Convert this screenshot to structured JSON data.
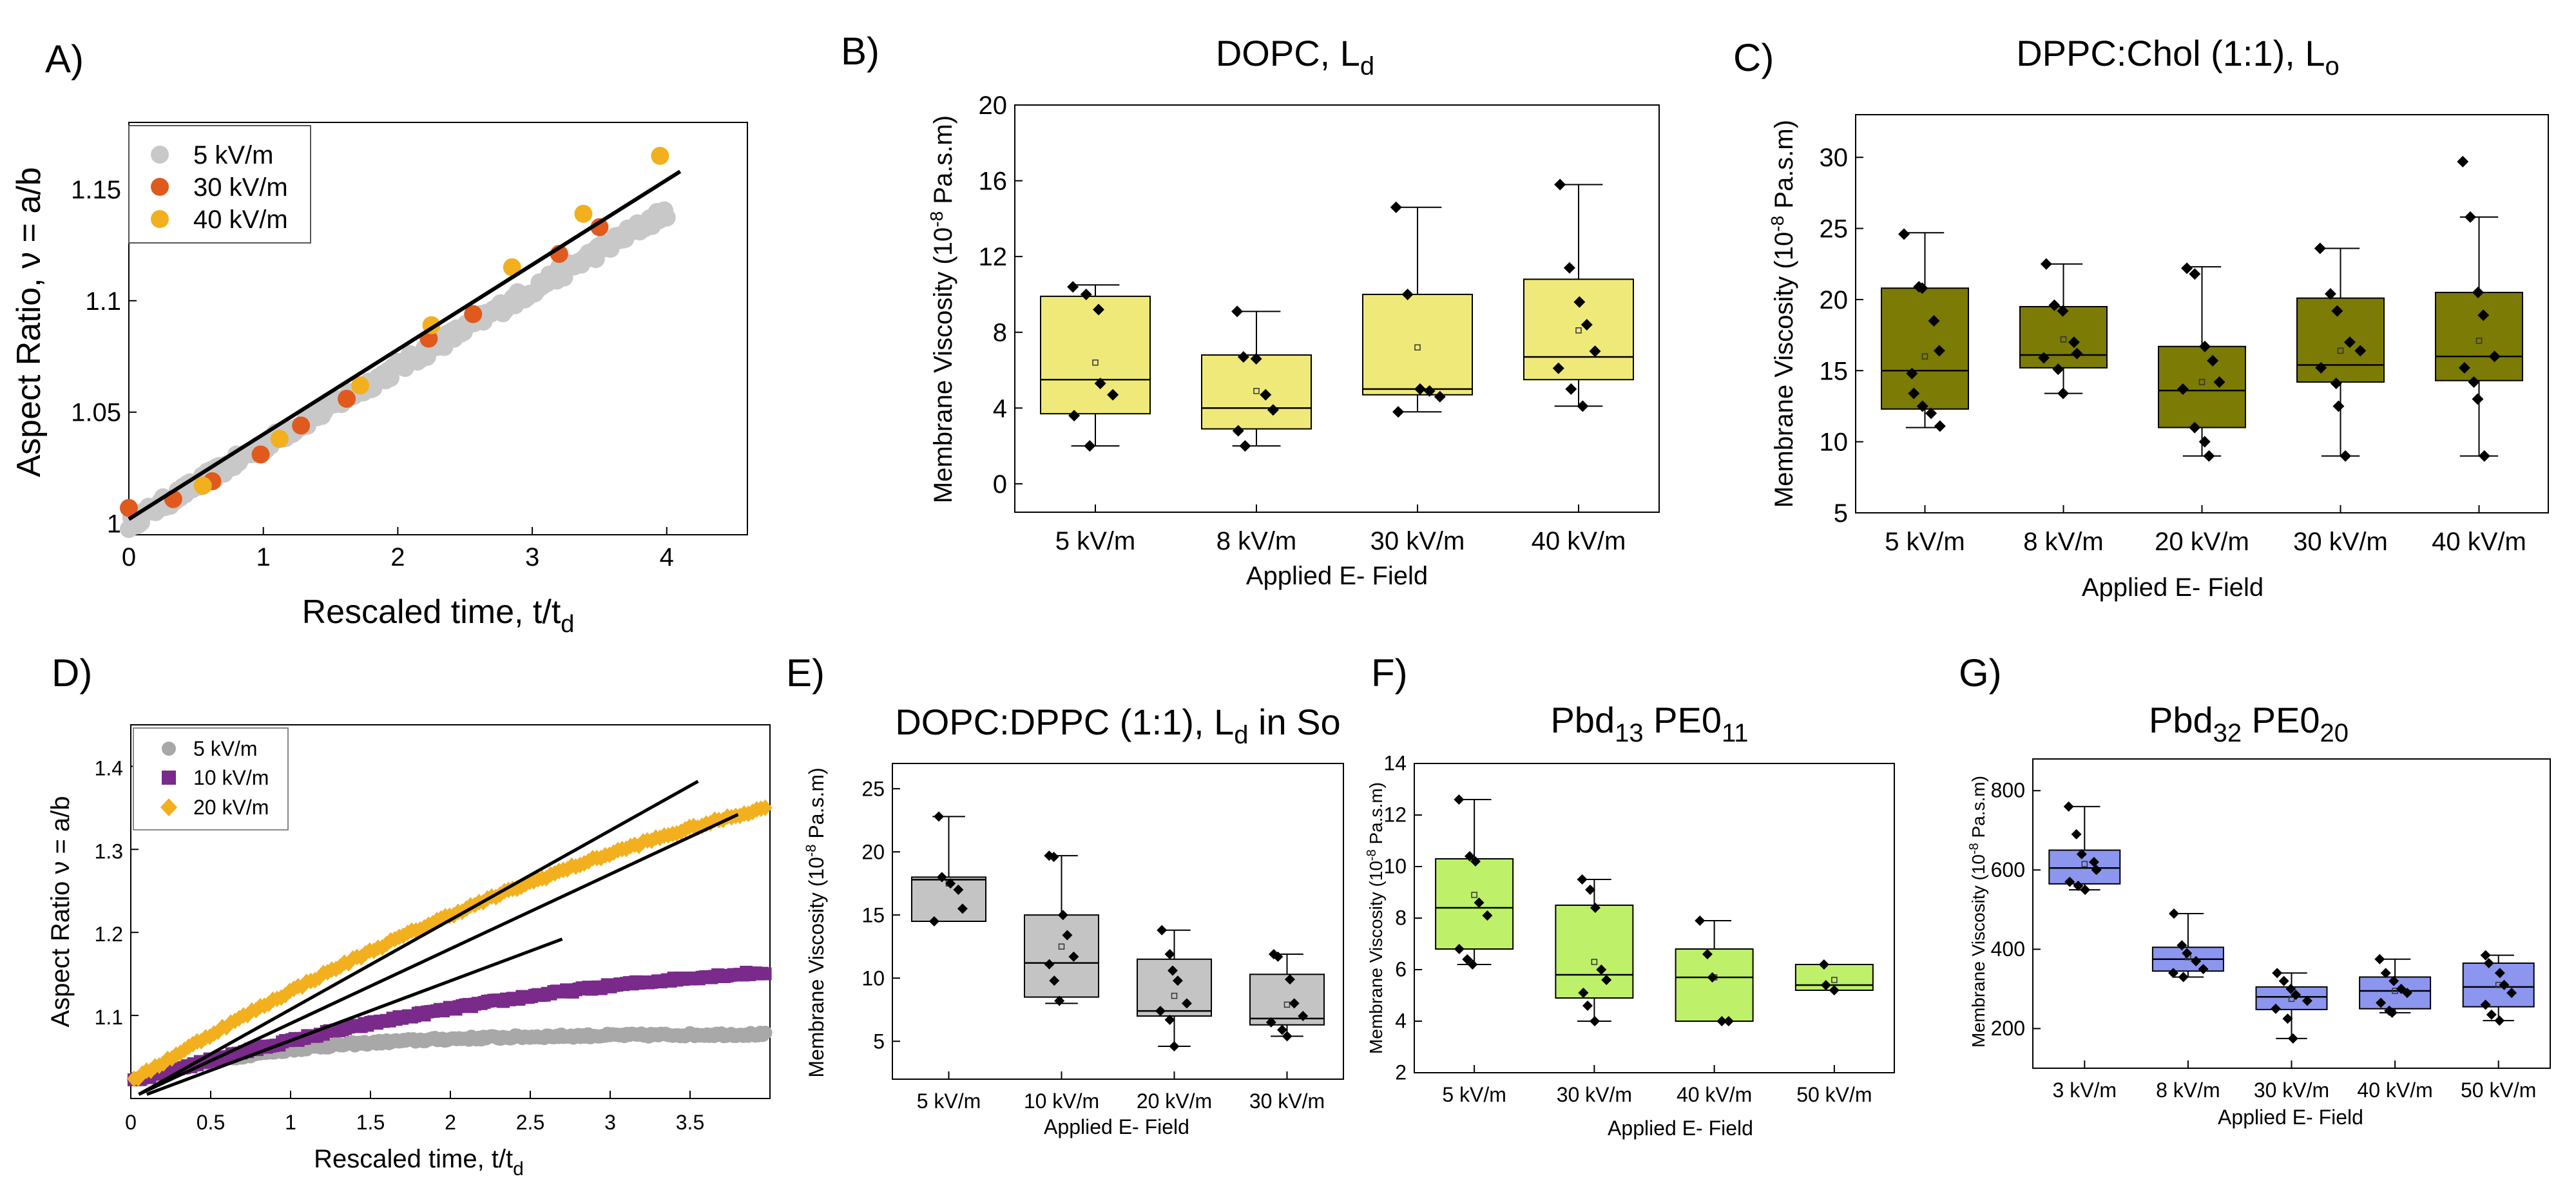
{
  "chart_data": [
    {
      "id": "A",
      "panel_label": "A)",
      "type": "scatter",
      "title": "",
      "xlabel": "Rescaled time, t/t",
      "xlabel_sub": "d",
      "ylabel": "Aspect Ratio, ν = a/b",
      "xlim": [
        0,
        4.6
      ],
      "ylim": [
        0.995,
        1.18
      ],
      "xticks": [
        0,
        1,
        2,
        3,
        4
      ],
      "yticks": [
        1,
        1.05,
        1.1,
        1.15
      ],
      "ytick_labels": [
        "1",
        "1.05",
        "1.1",
        "1.15"
      ],
      "legend": [
        "5 kV/m",
        "30 kV/m",
        "40 kV/m"
      ],
      "colors": [
        "#c8c8c8",
        "#e05a1e",
        "#f2b01e"
      ],
      "series": [
        {
          "name": "5 kV/m",
          "color": "#c8c8c8",
          "t0": 0,
          "t1": 4.0,
          "y0": 1.0,
          "y1": 1.14
        },
        {
          "name": "30 kV/m",
          "color": "#e05a1e",
          "x": [
            0,
            0.33,
            0.62,
            0.98,
            1.28,
            1.62,
            2.23,
            2.56,
            3.2,
            3.5
          ],
          "y": [
            1.007,
            1.011,
            1.019,
            1.031,
            1.044,
            1.056,
            1.083,
            1.094,
            1.121,
            1.133
          ]
        },
        {
          "name": "40 kV/m",
          "color": "#f2b01e",
          "x": [
            0.55,
            1.12,
            1.72,
            2.25,
            2.85,
            3.38,
            3.95
          ],
          "y": [
            1.017,
            1.038,
            1.062,
            1.089,
            1.115,
            1.139,
            1.165
          ]
        }
      ],
      "fit": {
        "x": [
          0,
          4.1
        ],
        "y": [
          1.002,
          1.158
        ]
      }
    },
    {
      "id": "B",
      "panel_label": "B)",
      "type": "box",
      "title": "DOPC, L",
      "title_sub": "d",
      "xlabel": "Applied E- Field",
      "ylabel": "Membrane Viscosity (10",
      "ylabel_sup": "-8",
      "ylabel_end": " Pa.s.m)",
      "ylim": [
        -1.5,
        20
      ],
      "yticks": [
        0,
        4,
        8,
        12,
        16,
        20
      ],
      "categories": [
        "5 kV/m",
        "8 kV/m",
        "30 kV/m",
        "40 kV/m"
      ],
      "color": "#efe97a",
      "boxes": [
        {
          "min": 2.0,
          "q1": 3.7,
          "median": 5.5,
          "q3": 9.9,
          "max": 10.5,
          "mean": 6.4,
          "points": [
            10.4,
            10.0,
            9.2,
            5.3,
            4.7,
            3.6,
            2.0
          ]
        },
        {
          "min": 2.0,
          "q1": 2.9,
          "median": 4.0,
          "q3": 6.8,
          "max": 9.1,
          "mean": 4.9,
          "points": [
            9.1,
            6.7,
            6.6,
            4.7,
            3.9,
            2.8,
            2.0
          ]
        },
        {
          "min": 3.8,
          "q1": 4.7,
          "median": 5.0,
          "q3": 10.0,
          "max": 14.6,
          "mean": 7.2,
          "points": [
            14.6,
            10.0,
            5.0,
            4.9,
            4.6,
            3.8
          ]
        },
        {
          "min": 4.1,
          "q1": 5.5,
          "median": 6.7,
          "q3": 10.8,
          "max": 15.8,
          "mean": 8.1,
          "points": [
            15.8,
            11.4,
            9.6,
            8.4,
            7.0,
            6.1,
            5.0,
            4.1
          ]
        }
      ]
    },
    {
      "id": "C",
      "panel_label": "C)",
      "type": "box",
      "title": "DPPC:Chol (1:1), L",
      "title_sub": "o",
      "xlabel": "Applied E- Field",
      "ylabel": "Membrane Viscosity (10",
      "ylabel_sup": "-8",
      "ylabel_end": " Pa.s.m)",
      "ylim": [
        5,
        33
      ],
      "yticks": [
        5,
        10,
        15,
        20,
        25,
        30
      ],
      "categories": [
        "5 kV/m",
        "8 kV/m",
        "20 kV/m",
        "30 kV/m",
        "40 kV/m"
      ],
      "color": "#7b7b06",
      "boxes": [
        {
          "min": 11.0,
          "q1": 12.3,
          "median": 15.0,
          "q3": 20.8,
          "max": 24.7,
          "mean": 16.0,
          "points": [
            24.6,
            20.9,
            20.8,
            18.5,
            16.4,
            14.8,
            13.4,
            12.5,
            12.0,
            11.1
          ]
        },
        {
          "min": 13.4,
          "q1": 15.2,
          "median": 16.1,
          "q3": 19.5,
          "max": 22.5,
          "mean": 17.2,
          "points": [
            22.5,
            19.6,
            19.2,
            17.0,
            16.2,
            15.9,
            15.1,
            13.4
          ]
        },
        {
          "min": 9.0,
          "q1": 11.0,
          "median": 13.6,
          "q3": 16.7,
          "max": 22.3,
          "mean": 14.2,
          "points": [
            22.2,
            21.8,
            16.7,
            15.7,
            14.2,
            13.7,
            11.0,
            10.0,
            9.0
          ]
        },
        {
          "min": 9.0,
          "q1": 14.2,
          "median": 15.4,
          "q3": 20.1,
          "max": 23.6,
          "mean": 16.4,
          "points": [
            23.6,
            20.4,
            19.2,
            17.0,
            16.4,
            15.2,
            14.1,
            12.5,
            9.0
          ]
        },
        {
          "min": 9.0,
          "q1": 14.3,
          "median": 16.0,
          "q3": 20.5,
          "max": 25.8,
          "mean": 17.1,
          "points": [
            29.7,
            25.8,
            20.5,
            18.9,
            16.0,
            15.2,
            14.2,
            13.0,
            9.0
          ]
        }
      ]
    },
    {
      "id": "D",
      "panel_label": "D)",
      "type": "scatter",
      "title": "",
      "xlabel": "Rescaled time, t/t",
      "xlabel_sub": "d",
      "ylabel": "Aspect Ratio ν = a/b",
      "xlim": [
        0,
        4.0
      ],
      "ylim": [
        1.0,
        1.45
      ],
      "xticks": [
        0,
        0.5,
        1,
        1.5,
        2,
        2.5,
        3,
        3.5
      ],
      "xtick_labels": [
        "0",
        "0.5",
        "1",
        "1.5",
        "2",
        "2.5",
        "3",
        "3.5"
      ],
      "yticks": [
        1.1,
        1.2,
        1.3,
        1.4
      ],
      "ytick_labels": [
        "1.1",
        "1.2",
        "1.3",
        "1.4"
      ],
      "legend": [
        "5 kV/m",
        "10 kV/m",
        "20 kV/m"
      ],
      "colors": [
        "#a8a8a8",
        "#7a2a8a",
        "#f2b01e"
      ],
      "fits": [
        {
          "x": [
            0.05,
            3.55
          ],
          "y": [
            1.005,
            1.382
          ]
        },
        {
          "x": [
            0.05,
            3.8
          ],
          "y": [
            1.005,
            1.342
          ]
        },
        {
          "x": [
            0.1,
            2.7
          ],
          "y": [
            1.005,
            1.192
          ]
        }
      ]
    },
    {
      "id": "E",
      "panel_label": "E)",
      "type": "box",
      "title": "DOPC:DPPC (1:1), L",
      "title_sub": "d",
      "title_end": " in So",
      "xlabel": "Applied E- Field",
      "ylabel": "Membrane Viscosity (10",
      "ylabel_sup": "-8",
      "ylabel_end": " Pa.s.m)",
      "ylim": [
        2,
        27
      ],
      "yticks": [
        5,
        10,
        15,
        20,
        25
      ],
      "categories": [
        "5 kV/m",
        "10 kV/m",
        "20 kV/m",
        "30 kV/m"
      ],
      "color": "#c4c4c4",
      "boxes": [
        {
          "min": 14.5,
          "q1": 14.5,
          "median": 17.8,
          "q3": 18.0,
          "max": 22.8,
          "mean": 17.5,
          "points": [
            22.8,
            18.0,
            17.5,
            17.0,
            15.5,
            14.5
          ]
        },
        {
          "min": 8.0,
          "q1": 8.5,
          "median": 11.2,
          "q3": 15.0,
          "max": 19.7,
          "mean": 12.5,
          "points": [
            19.7,
            19.6,
            15.0,
            13.4,
            11.7,
            11.1,
            9.8,
            8.2
          ]
        },
        {
          "min": 4.6,
          "q1": 7.0,
          "median": 7.4,
          "q3": 11.5,
          "max": 13.8,
          "mean": 8.6,
          "points": [
            13.8,
            11.9,
            10.6,
            9.8,
            8.0,
            7.4,
            6.7,
            4.6
          ]
        },
        {
          "min": 5.4,
          "q1": 6.3,
          "median": 6.8,
          "q3": 10.3,
          "max": 11.9,
          "mean": 7.9,
          "points": [
            11.9,
            11.7,
            9.9,
            8.0,
            7.0,
            6.5,
            5.9,
            5.4
          ]
        }
      ]
    },
    {
      "id": "F",
      "panel_label": "F)",
      "type": "box",
      "title": "Pbd",
      "title_sub": "13",
      "title_mid": " PE0",
      "title_sub2": "11",
      "xlabel": "Applied E- Field",
      "ylabel": "Membrane Viscosity (10",
      "ylabel_sup": "-8",
      "ylabel_end": " Pa.s.m)",
      "ylim": [
        2,
        14
      ],
      "yticks": [
        2,
        4,
        6,
        8,
        10,
        12,
        14
      ],
      "categories": [
        "5 kV/m",
        "30 kV/m",
        "40 kV/m",
        "50 kV/m"
      ],
      "color": "#bef06a",
      "boxes": [
        {
          "min": 6.2,
          "q1": 6.8,
          "median": 8.4,
          "q3": 10.3,
          "max": 12.6,
          "mean": 8.9,
          "points": [
            12.6,
            10.4,
            10.2,
            8.6,
            8.1,
            6.8,
            6.4,
            6.2
          ]
        },
        {
          "min": 4.0,
          "q1": 4.9,
          "median": 5.8,
          "q3": 8.5,
          "max": 9.5,
          "mean": 6.3,
          "points": [
            9.5,
            9.1,
            8.4,
            6.0,
            5.6,
            5.1,
            4.6,
            4.0
          ]
        },
        {
          "min": 4.0,
          "q1": 4.0,
          "median": 5.7,
          "q3": 6.8,
          "max": 7.9,
          "mean": 5.7,
          "points": [
            7.9,
            6.6,
            5.7,
            4.0,
            4.0
          ]
        },
        {
          "min": 5.2,
          "q1": 5.2,
          "median": 5.4,
          "q3": 6.2,
          "max": 6.2,
          "mean": 5.6,
          "points": [
            6.2,
            5.4,
            5.2
          ]
        }
      ]
    },
    {
      "id": "G",
      "panel_label": "G)",
      "type": "box",
      "title": "Pbd",
      "title_sub": "32",
      "title_mid": " PE0",
      "title_sub2": "20",
      "xlabel": "Applied E- Field",
      "ylabel": "Membrane Viscosity (10",
      "ylabel_sup": "-8",
      "ylabel_end": " Pa.s.m)",
      "ylim": [
        100,
        880
      ],
      "yticks": [
        200,
        400,
        600,
        800
      ],
      "categories": [
        "3 kV/m",
        "8 kV/m",
        "30 kV/m",
        "40 kV/m",
        "50 kV/m"
      ],
      "color": "#8c96ee",
      "boxes": [
        {
          "min": 550,
          "q1": 565,
          "median": 605,
          "q3": 650,
          "max": 760,
          "mean": 615,
          "points": [
            760,
            690,
            640,
            620,
            600,
            570,
            560,
            550
          ]
        },
        {
          "min": 330,
          "q1": 345,
          "median": 375,
          "q3": 405,
          "max": 490,
          "mean": 380,
          "points": [
            490,
            410,
            390,
            370,
            350,
            340,
            330
          ]
        },
        {
          "min": 175,
          "q1": 248,
          "median": 280,
          "q3": 305,
          "max": 340,
          "mean": 275,
          "points": [
            340,
            320,
            300,
            285,
            270,
            250,
            225,
            175
          ]
        },
        {
          "min": 240,
          "q1": 250,
          "median": 295,
          "q3": 330,
          "max": 375,
          "mean": 295,
          "points": [
            375,
            340,
            320,
            300,
            290,
            265,
            245,
            240
          ]
        },
        {
          "min": 220,
          "q1": 255,
          "median": 305,
          "q3": 365,
          "max": 385,
          "mean": 310,
          "points": [
            385,
            365,
            340,
            310,
            290,
            260,
            235,
            220
          ]
        }
      ]
    }
  ]
}
